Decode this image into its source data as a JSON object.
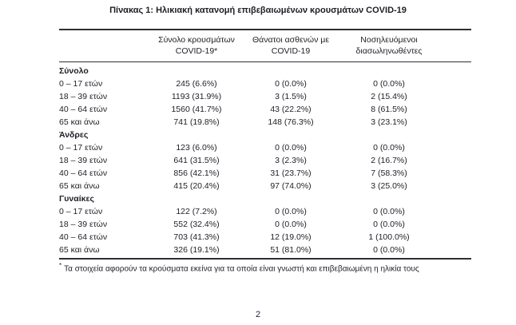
{
  "page": {
    "title": "Πίνακας 1: Ηλικιακή κατανομή επιβεβαιωμένων κρουσμάτων COVID-19",
    "footnote_marker": "*",
    "footnote_text": "Τα στοιχεία αφορούν τα κρούσματα εκείνα για τα οποία είναι γνωστή και επιβεβαιωμένη η ηλικία τους",
    "page_number": "2"
  },
  "table": {
    "headers": [
      {
        "line1": "Σύνολο κρουσμάτων",
        "line2": "COVID-19*"
      },
      {
        "line1": "Θάνατοι ασθενών με",
        "line2": "COVID-19"
      },
      {
        "line1": "Νοσηλευόμενοι",
        "line2": "διασωληνωθέντες"
      }
    ],
    "sections": [
      {
        "label": "Σύνολο",
        "rows": [
          {
            "age": "0 – 17 ετών",
            "values": [
              "245 (6.6%)",
              "0 (0.0%)",
              "0 (0.0%)"
            ]
          },
          {
            "age": "18 – 39 ετών",
            "values": [
              "1193 (31.9%)",
              "3 (1.5%)",
              "2 (15.4%)"
            ]
          },
          {
            "age": "40 – 64 ετών",
            "values": [
              "1560 (41.7%)",
              "43 (22.2%)",
              "8 (61.5%)"
            ]
          },
          {
            "age": "65 και άνω",
            "values": [
              "741 (19.8%)",
              "148 (76.3%)",
              "3 (23.1%)"
            ]
          }
        ]
      },
      {
        "label": "Άνδρες",
        "rows": [
          {
            "age": "0 – 17 ετών",
            "values": [
              "123 (6.0%)",
              "0 (0.0%)",
              "0 (0.0%)"
            ]
          },
          {
            "age": "18 – 39 ετών",
            "values": [
              "641 (31.5%)",
              "3 (2.3%)",
              "2 (16.7%)"
            ]
          },
          {
            "age": "40 – 64 ετών",
            "values": [
              "856 (42.1%)",
              "31 (23.7%)",
              "7 (58.3%)"
            ]
          },
          {
            "age": "65 και άνω",
            "values": [
              "415 (20.4%)",
              "97 (74.0%)",
              "3 (25.0%)"
            ]
          }
        ]
      },
      {
        "label": "Γυναίκες",
        "rows": [
          {
            "age": "0 – 17 ετών",
            "values": [
              "122 (7.2%)",
              "0 (0.0%)",
              "0 (0.0%)"
            ]
          },
          {
            "age": "18 – 39 ετών",
            "values": [
              "552 (32.4%)",
              "0 (0.0%)",
              "0 (0.0%)"
            ]
          },
          {
            "age": "40 – 64 ετών",
            "values": [
              "703 (41.3%)",
              "12 (19.0%)",
              "1 (100.0%)"
            ]
          },
          {
            "age": "65 και άνω",
            "values": [
              "326 (19.1%)",
              "51 (81.0%)",
              "0 (0.0%)"
            ]
          }
        ]
      }
    ]
  }
}
